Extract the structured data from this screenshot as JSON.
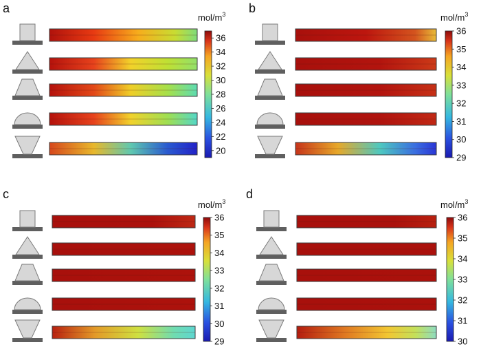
{
  "figure": {
    "panels": [
      {
        "letter": "a",
        "colorbar": {
          "unit_base": "mol/m",
          "unit_sup": "3",
          "min": 19,
          "max": 37,
          "ticks": [
            "36",
            "34",
            "32",
            "30",
            "28",
            "26",
            "24",
            "22",
            "20"
          ]
        },
        "shapes": [
          "square",
          "triangle",
          "trapezoid",
          "semicircle",
          "inverted-trapezoid"
        ],
        "channels": [
          {
            "stops": [
              [
                0,
                "#b0120c"
              ],
              [
                0.3,
                "#e83a12"
              ],
              [
                0.6,
                "#f7ad1c"
              ],
              [
                0.85,
                "#c8dc32"
              ],
              [
                1,
                "#7edc7c"
              ]
            ]
          },
          {
            "stops": [
              [
                0,
                "#b5120c"
              ],
              [
                0.3,
                "#e7421c"
              ],
              [
                0.55,
                "#f2d22a"
              ],
              [
                0.8,
                "#bfe034"
              ],
              [
                1,
                "#92e06a"
              ]
            ]
          },
          {
            "stops": [
              [
                0,
                "#b5120c"
              ],
              [
                0.3,
                "#e34818"
              ],
              [
                0.55,
                "#efce28"
              ],
              [
                0.8,
                "#a6e04a"
              ],
              [
                1,
                "#5ddcb2"
              ]
            ]
          },
          {
            "stops": [
              [
                0,
                "#b5120c"
              ],
              [
                0.3,
                "#e7421c"
              ],
              [
                0.55,
                "#f1d22c"
              ],
              [
                0.8,
                "#9fdf52"
              ],
              [
                1,
                "#54d8c8"
              ]
            ]
          },
          {
            "stops": [
              [
                0,
                "#d6471c"
              ],
              [
                0.3,
                "#e8b82c"
              ],
              [
                0.55,
                "#5fc8b0"
              ],
              [
                0.8,
                "#2a5ad0"
              ],
              [
                1,
                "#2222c8"
              ]
            ]
          }
        ]
      },
      {
        "letter": "b",
        "colorbar": {
          "unit_base": "mol/m",
          "unit_sup": "3",
          "min": 29,
          "max": 36,
          "ticks": [
            "36",
            "35",
            "34",
            "33",
            "32",
            "31",
            "30",
            "29"
          ]
        },
        "shapes": [
          "square",
          "triangle",
          "trapezoid",
          "semicircle",
          "inverted-trapezoid"
        ],
        "channels": [
          {
            "stops": [
              [
                0,
                "#a8100c"
              ],
              [
                0.5,
                "#bd160e"
              ],
              [
                0.85,
                "#d4541e"
              ],
              [
                1,
                "#e8bc38"
              ]
            ]
          },
          {
            "stops": [
              [
                0,
                "#a8100c"
              ],
              [
                0.6,
                "#b3140e"
              ],
              [
                1,
                "#cc3a18"
              ]
            ]
          },
          {
            "stops": [
              [
                0,
                "#a8100c"
              ],
              [
                0.6,
                "#b3140e"
              ],
              [
                1,
                "#c63016"
              ]
            ]
          },
          {
            "stops": [
              [
                0,
                "#a8100c"
              ],
              [
                0.6,
                "#b0130e"
              ],
              [
                1,
                "#c12814"
              ]
            ]
          },
          {
            "stops": [
              [
                0,
                "#c6341a"
              ],
              [
                0.3,
                "#e7a82a"
              ],
              [
                0.6,
                "#4ec8c0"
              ],
              [
                0.85,
                "#3a6ee0"
              ],
              [
                1,
                "#2a36d6"
              ]
            ]
          }
        ]
      },
      {
        "letter": "c",
        "colorbar": {
          "unit_base": "mol/m",
          "unit_sup": "3",
          "min": 29,
          "max": 36,
          "ticks": [
            "36",
            "35",
            "34",
            "33",
            "32",
            "31",
            "30",
            "29"
          ]
        },
        "shapes": [
          "square",
          "triangle",
          "trapezoid",
          "semicircle",
          "inverted-trapezoid"
        ],
        "channels": [
          {
            "stops": [
              [
                0,
                "#a8100c"
              ],
              [
                0.7,
                "#ac110c"
              ],
              [
                1,
                "#be2814"
              ]
            ]
          },
          {
            "stops": [
              [
                0,
                "#a8100c"
              ],
              [
                1,
                "#ad120c"
              ]
            ]
          },
          {
            "stops": [
              [
                0,
                "#a8100c"
              ],
              [
                1,
                "#ad120c"
              ]
            ]
          },
          {
            "stops": [
              [
                0,
                "#a8100c"
              ],
              [
                1,
                "#ad120c"
              ]
            ]
          },
          {
            "stops": [
              [
                0,
                "#b8200f"
              ],
              [
                0.3,
                "#e39a28"
              ],
              [
                0.6,
                "#cfe040"
              ],
              [
                0.85,
                "#70dcb0"
              ],
              [
                1,
                "#5ed6d0"
              ]
            ]
          }
        ]
      },
      {
        "letter": "d",
        "colorbar": {
          "unit_base": "mol/m",
          "unit_sup": "3",
          "min": 30,
          "max": 36,
          "ticks": [
            "36",
            "35",
            "34",
            "33",
            "32",
            "31",
            "30"
          ]
        },
        "shapes": [
          "square",
          "triangle",
          "trapezoid",
          "semicircle",
          "inverted-trapezoid"
        ],
        "channels": [
          {
            "stops": [
              [
                0,
                "#a8100c"
              ],
              [
                0.7,
                "#ab110c"
              ],
              [
                1,
                "#b8200f"
              ]
            ]
          },
          {
            "stops": [
              [
                0,
                "#a8100c"
              ],
              [
                1,
                "#ab110c"
              ]
            ]
          },
          {
            "stops": [
              [
                0,
                "#a8100c"
              ],
              [
                1,
                "#ab110c"
              ]
            ]
          },
          {
            "stops": [
              [
                0,
                "#a8100c"
              ],
              [
                1,
                "#ab110c"
              ]
            ]
          },
          {
            "stops": [
              [
                0,
                "#b41c0e"
              ],
              [
                0.35,
                "#e07a22"
              ],
              [
                0.65,
                "#f2c632"
              ],
              [
                0.85,
                "#c4e05a"
              ],
              [
                1,
                "#8edcc0"
              ]
            ]
          }
        ]
      }
    ],
    "colors": {
      "shape_fill": "#d7d7d7",
      "shape_stroke": "#7a7a7a",
      "base_fill": "#5f5f5f",
      "channel_border": "#3a3a3a"
    }
  }
}
